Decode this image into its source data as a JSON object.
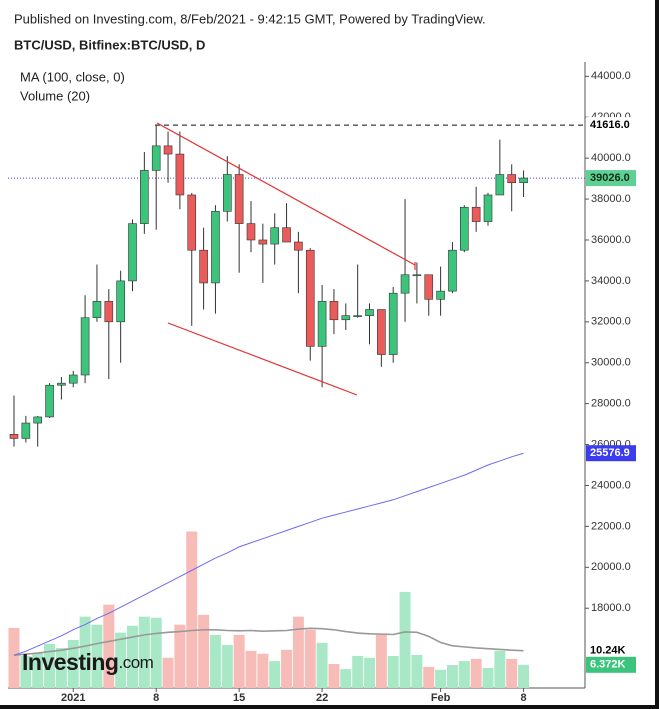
{
  "chart_data": {
    "type": "candlestick",
    "header": "Published on Investing.com, 8/Feb/2021 - 9:42:15 GMT, Powered by TradingView.",
    "title": "BTC/USD, Bitfinex:BTC/USD, D",
    "legend": [
      "MA (100, close, 0)",
      "Volume (20)"
    ],
    "logo": [
      "Investing",
      ".com"
    ],
    "categories": [
      null,
      null,
      null,
      null,
      null,
      "2021",
      null,
      null,
      null,
      null,
      null,
      null,
      "8",
      null,
      null,
      null,
      null,
      null,
      null,
      "15",
      null,
      null,
      null,
      null,
      null,
      null,
      "22",
      null,
      null,
      null,
      null,
      null,
      null,
      null,
      null,
      null,
      "Feb",
      null,
      null,
      null,
      null,
      null,
      null,
      "8"
    ],
    "open": [
      26500,
      26300,
      27050,
      27350,
      28900,
      29000,
      29400,
      32200,
      33000,
      32000,
      34000,
      36800,
      39400,
      40600,
      40200,
      38200,
      35500,
      33900,
      37400,
      39200,
      36800,
      36000,
      35800,
      36600,
      35900,
      35500,
      30800,
      33000,
      32100,
      32300,
      32300,
      32600,
      30400,
      33400,
      34300,
      34300,
      33100,
      33500,
      35500,
      37600,
      36900,
      38200,
      39200,
      38800
    ],
    "high": [
      28400,
      27400,
      27400,
      29000,
      29300,
      29600,
      33300,
      34800,
      33600,
      34500,
      37000,
      40300,
      41616,
      41300,
      41300,
      38300,
      36600,
      37700,
      40100,
      39700,
      37900,
      36800,
      37300,
      37800,
      36400,
      35600,
      33800,
      33600,
      32900,
      34800,
      32900,
      32600,
      33700,
      38000,
      34900,
      34300,
      34700,
      35900,
      37700,
      38600,
      38300,
      40900,
      39700,
      39400
    ],
    "low": [
      25900,
      26100,
      25900,
      27300,
      28200,
      28800,
      29000,
      32000,
      29200,
      30000,
      33500,
      36300,
      36500,
      38800,
      37500,
      31800,
      32600,
      32400,
      36900,
      34400,
      35400,
      33900,
      34800,
      35900,
      33400,
      30100,
      28800,
      31400,
      31600,
      32200,
      30900,
      29800,
      30000,
      32000,
      32900,
      32300,
      32300,
      33400,
      35400,
      36400,
      36700,
      38200,
      37400,
      38100
    ],
    "close": [
      26300,
      27050,
      27350,
      28900,
      29000,
      29400,
      32200,
      33000,
      32000,
      34000,
      36800,
      39400,
      40600,
      40200,
      38200,
      35500,
      33900,
      37400,
      39200,
      36800,
      36000,
      35800,
      36600,
      35900,
      35500,
      30800,
      33000,
      32100,
      32300,
      32300,
      32600,
      30400,
      33400,
      34300,
      34300,
      33100,
      33500,
      35500,
      37600,
      36900,
      38200,
      39200,
      38800,
      39026
    ],
    "up_color": "#3cc47c",
    "down_color": "#ea5b5b",
    "volume_up_color": "#a9e8c7",
    "volume_down_color": "#f7bcb8",
    "volume": [
      16.5,
      8.8,
      9.6,
      12.1,
      11.0,
      13.2,
      19.6,
      17.4,
      22.9,
      15.2,
      17.1,
      19.6,
      19.3,
      8.3,
      17.4,
      43.0,
      20.1,
      14.6,
      11.8,
      14.6,
      10.2,
      9.4,
      7.4,
      10.5,
      19.6,
      16.0,
      12.4,
      6.6,
      5.2,
      8.8,
      8.3,
      14.6,
      8.8,
      26.4,
      9.1,
      5.8,
      5.0,
      6.3,
      7.4,
      8.0,
      5.5,
      10.2,
      8.0,
      6.372
    ],
    "ma": {
      "color": "#6b6bf0",
      "values": [
        15700,
        15900,
        16150,
        16400,
        16650,
        16950,
        17200,
        17500,
        17750,
        18050,
        18350,
        18650,
        18950,
        19250,
        19550,
        19850,
        20150,
        20450,
        20700,
        21000,
        21200,
        21400,
        21600,
        21800,
        22000,
        22200,
        22400,
        22550,
        22700,
        22850,
        23000,
        23150,
        23300,
        23500,
        23700,
        23900,
        24100,
        24300,
        24500,
        24750,
        25000,
        25200,
        25400,
        25576.9
      ]
    },
    "volume_ma": {
      "color": "#999999",
      "values": [
        9.0,
        9.3,
        9.6,
        10.0,
        10.4,
        10.9,
        11.5,
        12.2,
        12.8,
        13.4,
        14.0,
        14.6,
        15.0,
        15.3,
        15.5,
        15.8,
        16.0,
        16.0,
        15.8,
        15.7,
        15.8,
        15.6,
        15.7,
        15.8,
        16.2,
        16.4,
        16.3,
        16.0,
        15.5,
        15.1,
        14.9,
        14.8,
        14.7,
        15.4,
        15.3,
        14.2,
        12.5,
        11.6,
        11.3,
        11.0,
        10.8,
        10.6,
        10.4,
        10.24
      ]
    },
    "ylim": [
      14100,
      44700
    ],
    "volume_ylim": [
      0,
      172
    ],
    "yticks": [
      {
        "value": 18000,
        "label": "18000.0"
      },
      {
        "value": 20000,
        "label": "20000.0"
      },
      {
        "value": 22000,
        "label": "22000.0"
      },
      {
        "value": 24000,
        "label": "24000.0"
      },
      {
        "value": 26000,
        "label": "26000.0"
      },
      {
        "value": 28000,
        "label": "28000.0"
      },
      {
        "value": 30000,
        "label": "30000.0"
      },
      {
        "value": 32000,
        "label": "32000.0"
      },
      {
        "value": 34000,
        "label": "34000.0"
      },
      {
        "value": 36000,
        "label": "36000.0"
      },
      {
        "value": 38000,
        "label": "38000.0"
      },
      {
        "value": 40000,
        "label": "40000.0"
      },
      {
        "value": 42000,
        "label": "42000.0"
      },
      {
        "value": 44000,
        "label": "44000.0"
      }
    ],
    "price_labels": [
      {
        "value": 41616,
        "label": "41616.0",
        "bg": "#ffffff",
        "fg": "#000000",
        "line": "dashed"
      },
      {
        "value": 39026,
        "label": "39026.0",
        "bg": "#5fcf94",
        "fg": "#0b2e1a",
        "line": "dotted"
      },
      {
        "value": 25576.9,
        "label": "25576.9",
        "bg": "#3b3bf0",
        "fg": "#ffffff"
      }
    ],
    "volume_labels": [
      {
        "value": 10.24,
        "label": "10.24K",
        "bg": "#ffffff",
        "fg": "#000000"
      },
      {
        "value": 6.372,
        "label": "6.372K",
        "bg": "#3cc47c",
        "fg": "#ffffff"
      }
    ]
  }
}
